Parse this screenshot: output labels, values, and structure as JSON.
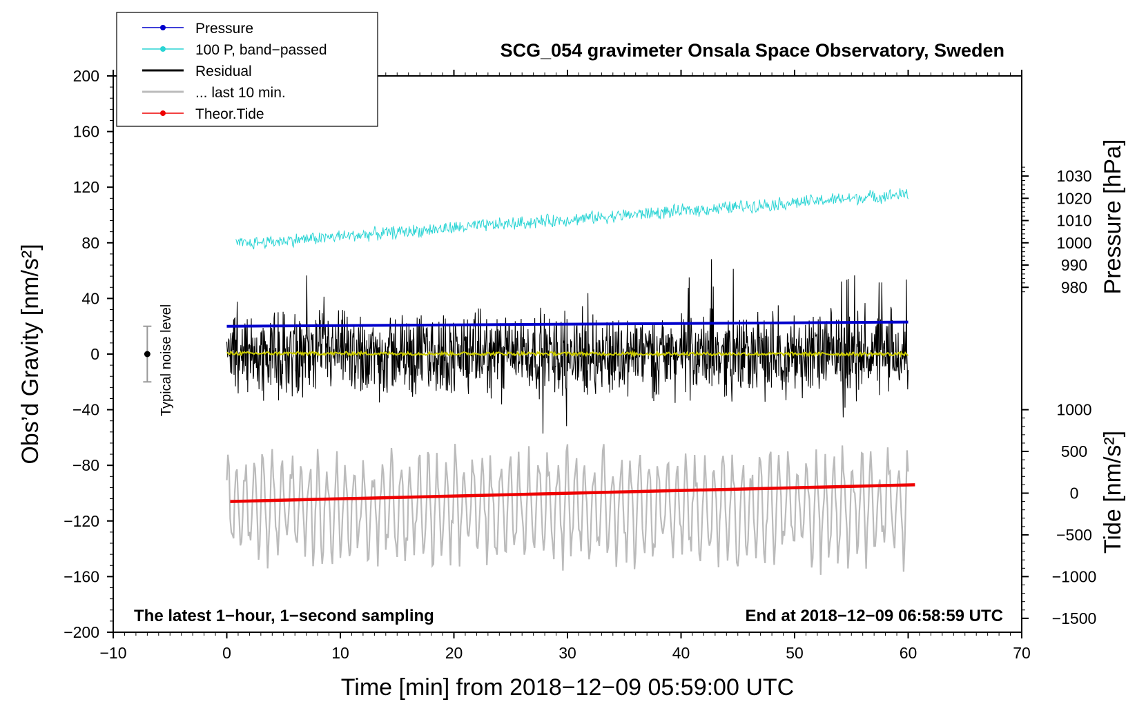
{
  "chart_data": {
    "type": "line",
    "title": "SCG_054 gravimeter Onsala Space Observatory, Sweden",
    "xlabel": "Time [min] from 2018−12−09 05:59:00 UTC",
    "ylabel_left": "Obs’d Gravity [nm/s²]",
    "ylabel_right_pressure": "Pressure [hPa]",
    "ylabel_right_tide": "Tide [nm/s²]",
    "xlim": [
      -10,
      70
    ],
    "ylim": [
      -200,
      200
    ],
    "xticks": [
      -10,
      0,
      10,
      20,
      30,
      40,
      50,
      60,
      70
    ],
    "xtick_labels": [
      "−10",
      "0",
      "10",
      "20",
      "30",
      "40",
      "50",
      "60",
      "70"
    ],
    "yticks": [
      200,
      160,
      120,
      80,
      40,
      0,
      -40,
      -80,
      -120,
      -160,
      -200
    ],
    "ytick_labels": [
      "200",
      "160",
      "120",
      "80",
      "40",
      "0",
      "−40",
      "−80",
      "−120",
      "−160",
      "−200"
    ],
    "pressure_axis": {
      "ticks": [
        1030,
        1020,
        1010,
        1000,
        990,
        980
      ],
      "labels": [
        "1030",
        "1020",
        "1010",
        "1000",
        "990",
        "980"
      ],
      "gravity_per_hpa": 1.6,
      "gravity_at_1000": 80
    },
    "tide_axis": {
      "ticks": [
        1000,
        500,
        0,
        -500,
        -1000,
        -1500
      ],
      "labels": [
        "1000",
        "500",
        "0",
        "−500",
        "−1000",
        "−1500"
      ],
      "gravity_per_unit": 0.06,
      "gravity_at_zero": -100
    },
    "series": [
      {
        "name": "Pressure",
        "color": "#0000cc",
        "start": [
          0,
          20
        ],
        "end": [
          60,
          23
        ]
      },
      {
        "name": "100 P, band−passed",
        "color": "#2ad4d4",
        "start": [
          0.8,
          79
        ],
        "end": [
          60,
          115
        ],
        "noise": 4
      },
      {
        "name": "Residual",
        "color": "#000000",
        "start": [
          0,
          0
        ],
        "end": [
          60,
          0
        ],
        "noise": 24
      },
      {
        "name": "Residual smoothed",
        "color": "#cccc00",
        "start": [
          0,
          0.5
        ],
        "end": [
          60,
          0
        ],
        "noise": 1.2
      },
      {
        "name": "... last 10 min.",
        "color": "#bbbbbb",
        "start": [
          0,
          -110
        ],
        "end": [
          60,
          -110
        ],
        "noise": 30
      },
      {
        "name": "Theor.Tide",
        "color": "#ee0000",
        "start": [
          0.3,
          -106
        ],
        "end": [
          60.6,
          -94
        ]
      }
    ],
    "legend": {
      "position": "top-left",
      "entries": [
        {
          "label": "Pressure",
          "color": "#0000cc",
          "marker": true,
          "thick": false
        },
        {
          "label": "100 P, band−passed",
          "color": "#2ad4d4",
          "marker": true,
          "thick": false
        },
        {
          "label": "Residual",
          "color": "#000000",
          "marker": false,
          "thick": true
        },
        {
          "label": "... last 10 min.",
          "color": "#bbbbbb",
          "marker": false,
          "thick": true
        },
        {
          "label": "Theor.Tide",
          "color": "#ee0000",
          "marker": true,
          "thick": false
        }
      ]
    },
    "noise_bar": {
      "label": "Typical noise level",
      "x": -7,
      "center": 0,
      "halfwidth": 20
    },
    "annotations": {
      "left": "The latest 1−hour, 1−second sampling",
      "right": "End at 2018−12−09 06:58:59 UTC"
    }
  }
}
